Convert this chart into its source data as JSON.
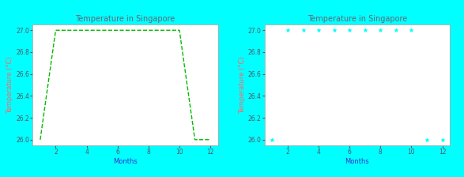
{
  "title": "Temperature in Singapore",
  "xlabel": "Months",
  "ylabel": "Temperature (°C)",
  "months": [
    1,
    2,
    3,
    4,
    5,
    6,
    7,
    8,
    9,
    10,
    11,
    12
  ],
  "temps": [
    26.0,
    27.0,
    27.0,
    27.0,
    27.0,
    27.0,
    27.0,
    27.0,
    27.0,
    27.0,
    26.0,
    26.0
  ],
  "line_color": "#00bb00",
  "marker_color": "cyan",
  "line_style": "--",
  "marker_style": "*",
  "ylabel_color": "#ff6666",
  "xlabel_color": "#3333cc",
  "title_color": "#666677",
  "bg_color": "cyan",
  "plot_bg": "white",
  "ylim": [
    25.95,
    27.05
  ],
  "xlim": [
    0.5,
    12.5
  ],
  "xticks": [
    2,
    4,
    6,
    8,
    10,
    12
  ],
  "yticks": [
    26.0,
    26.2,
    26.4,
    26.6,
    26.8,
    27.0
  ],
  "line_width": 1.0,
  "marker_size": 3.5,
  "title_fontsize": 7,
  "label_fontsize": 6,
  "tick_fontsize": 5.5
}
